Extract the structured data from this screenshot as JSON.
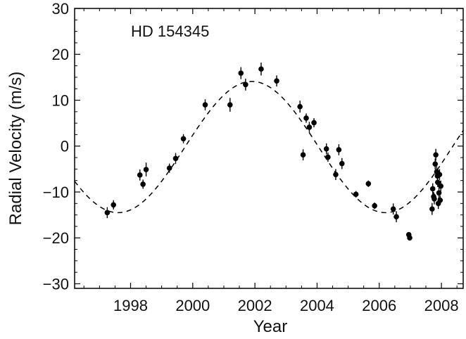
{
  "chart_data": {
    "type": "scatter",
    "title": "",
    "annotation": "HD 154345",
    "xlabel": "Year",
    "ylabel": "Radial Velocity  (m/s)",
    "xlim": [
      1996.2,
      2008.7
    ],
    "ylim": [
      -31,
      30
    ],
    "x_ticks": [
      1998,
      2000,
      2002,
      2004,
      2006,
      2008
    ],
    "x_tick_labels": [
      "1998",
      "2000",
      "2002",
      "2004",
      "2006",
      "2008"
    ],
    "y_ticks": [
      -30,
      -20,
      -10,
      0,
      10,
      20,
      30
    ],
    "y_tick_labels": [
      "−30",
      "−20",
      "−10",
      "0",
      "10",
      "20",
      "30"
    ],
    "grid": false,
    "model_curve": {
      "style": "dashed",
      "shape": "sinusoid",
      "amplitude": 14.3,
      "offset": -0.2,
      "period_years": 8.6,
      "peak_year": 2001.9,
      "range": [
        1996.2,
        2008.7
      ]
    },
    "points": [
      {
        "x": 1997.25,
        "y": -14.5,
        "err": 1.2
      },
      {
        "x": 1997.45,
        "y": -12.8,
        "err": 1.0
      },
      {
        "x": 1998.3,
        "y": -6.3,
        "err": 1.2
      },
      {
        "x": 1998.4,
        "y": -8.3,
        "err": 1.0
      },
      {
        "x": 1998.5,
        "y": -5.1,
        "err": 1.5
      },
      {
        "x": 1999.25,
        "y": -4.8,
        "err": 1.0
      },
      {
        "x": 1999.45,
        "y": -2.7,
        "err": 1.2
      },
      {
        "x": 1999.7,
        "y": 1.6,
        "err": 1.0
      },
      {
        "x": 2000.4,
        "y": 9.0,
        "err": 1.2
      },
      {
        "x": 2001.2,
        "y": 9.0,
        "err": 1.5
      },
      {
        "x": 2001.55,
        "y": 15.9,
        "err": 1.3
      },
      {
        "x": 2001.7,
        "y": 13.4,
        "err": 1.3
      },
      {
        "x": 2002.2,
        "y": 16.8,
        "err": 1.4
      },
      {
        "x": 2002.7,
        "y": 14.2,
        "err": 1.2
      },
      {
        "x": 2003.45,
        "y": 8.6,
        "err": 1.3
      },
      {
        "x": 2003.55,
        "y": -1.9,
        "err": 1.2
      },
      {
        "x": 2003.65,
        "y": 6.1,
        "err": 1.0
      },
      {
        "x": 2003.75,
        "y": 4.1,
        "err": 1.2
      },
      {
        "x": 2003.9,
        "y": 5.1,
        "err": 1.0
      },
      {
        "x": 2004.3,
        "y": -0.6,
        "err": 1.2
      },
      {
        "x": 2004.35,
        "y": -2.4,
        "err": 1.0
      },
      {
        "x": 2004.6,
        "y": -6.2,
        "err": 1.2
      },
      {
        "x": 2004.7,
        "y": -0.8,
        "err": 1.2
      },
      {
        "x": 2004.8,
        "y": -3.8,
        "err": 1.2
      },
      {
        "x": 2005.25,
        "y": -10.5,
        "err": 0.7
      },
      {
        "x": 2005.65,
        "y": -8.2,
        "err": 0.7
      },
      {
        "x": 2005.85,
        "y": -13.0,
        "err": 0.7
      },
      {
        "x": 2006.45,
        "y": -13.7,
        "err": 1.2
      },
      {
        "x": 2006.55,
        "y": -15.4,
        "err": 1.2
      },
      {
        "x": 2006.95,
        "y": -19.3,
        "err": 0.5
      },
      {
        "x": 2006.98,
        "y": -20.0,
        "err": 0.5
      },
      {
        "x": 2007.7,
        "y": -13.7,
        "err": 1.3
      },
      {
        "x": 2007.72,
        "y": -9.3,
        "err": 1.2
      },
      {
        "x": 2007.75,
        "y": -11.0,
        "err": 1.0
      },
      {
        "x": 2007.77,
        "y": -11.5,
        "err": 1.2
      },
      {
        "x": 2007.8,
        "y": -3.9,
        "err": 1.2
      },
      {
        "x": 2007.82,
        "y": -1.9,
        "err": 1.3
      },
      {
        "x": 2007.85,
        "y": -5.6,
        "err": 1.2
      },
      {
        "x": 2007.87,
        "y": -6.5,
        "err": 1.2
      },
      {
        "x": 2007.88,
        "y": -7.9,
        "err": 1.0
      },
      {
        "x": 2007.9,
        "y": -12.5,
        "err": 1.2
      },
      {
        "x": 2007.92,
        "y": -10.2,
        "err": 1.2
      },
      {
        "x": 2007.94,
        "y": -6.2,
        "err": 1.2
      },
      {
        "x": 2007.96,
        "y": -11.8,
        "err": 1.0
      },
      {
        "x": 2007.98,
        "y": -8.7,
        "err": 1.2
      }
    ]
  },
  "colors": {
    "background": "#ffffff",
    "axis": "#000000",
    "points": "#000000",
    "curve": "#000000",
    "text": "#111111"
  }
}
